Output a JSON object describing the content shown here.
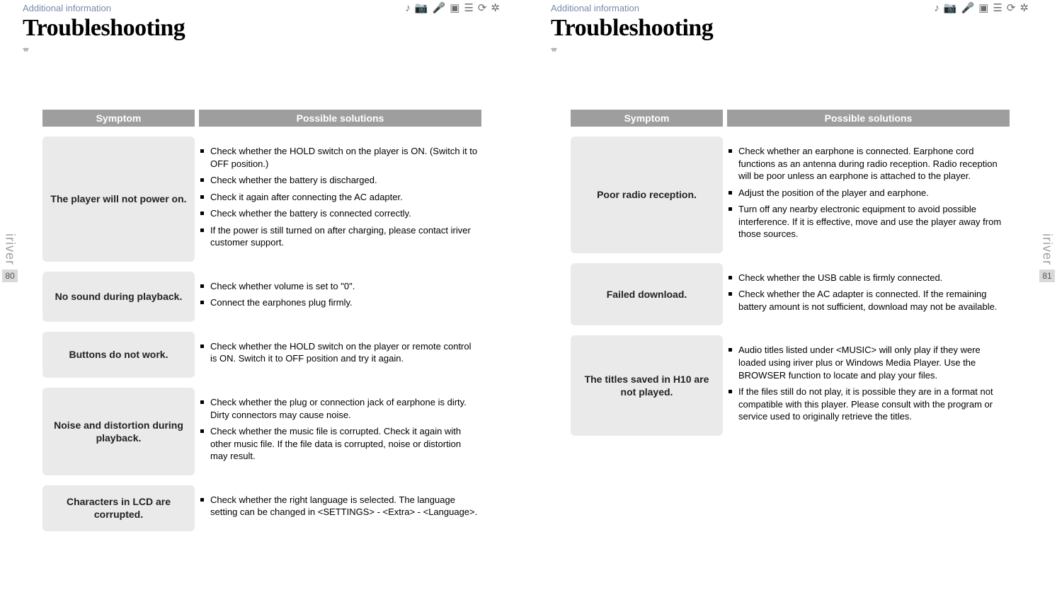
{
  "colors": {
    "header_bg": "#9e9e9e",
    "header_text": "#ffffff",
    "symptom_bg": "#eaeaea",
    "additional_text": "#7b8aa5",
    "brand_text": "#9e9e9e",
    "pgnum_bg": "#d9d9d9"
  },
  "icons": [
    "♪",
    "📷",
    "🎤",
    "▣",
    "☰",
    "⟳",
    "✲"
  ],
  "brand": "iriver",
  "leftPage": {
    "additional": "Additional information",
    "title": "Troubleshooting",
    "pageNumber": "80",
    "headers": {
      "symptom": "Symptom",
      "solutions": "Possible solutions"
    },
    "rows": [
      {
        "symptom": "The player will not power on.",
        "solutions": [
          "Check whether the HOLD switch on the player is ON. (Switch it to OFF position.)",
          "Check whether the battery is discharged.",
          "Check it again after connecting the AC adapter.",
          "Check whether the battery is connected correctly.",
          "If the power is still turned on after charging, please contact iriver customer support."
        ]
      },
      {
        "symptom": "No sound during playback.",
        "solutions": [
          "Check whether volume is set to \"0\".",
          "Connect the earphones plug firmly."
        ]
      },
      {
        "symptom": "Buttons do not work.",
        "solutions": [
          "Check whether the HOLD switch on the player or remote control is ON. Switch it to OFF position and try it again."
        ]
      },
      {
        "symptom": "Noise and distortion during playback.",
        "solutions": [
          "Check whether the plug or connection jack of earphone is dirty. Dirty connectors may cause noise.",
          "Check whether the music file is corrupted. Check it again with other music file. If the file data is corrupted, noise or distortion may result."
        ]
      },
      {
        "symptom": "Characters in LCD are corrupted.",
        "solutions": [
          "Check whether the right language is selected. The language setting can be changed in <SETTINGS> - <Extra> - <Language>."
        ]
      }
    ]
  },
  "rightPage": {
    "additional": "Additional information",
    "title": "Troubleshooting",
    "pageNumber": "81",
    "headers": {
      "symptom": "Symptom",
      "solutions": "Possible solutions"
    },
    "rows": [
      {
        "symptom": "Poor radio reception.",
        "solutions": [
          "Check whether an earphone is connected. Earphone cord functions as an antenna during radio reception. Radio reception will be poor unless an earphone is attached to the player.",
          "Adjust the position of the player and earphone.",
          "Turn off any nearby electronic equipment to avoid possible interference. If it is effective, move and use the player away from those sources."
        ]
      },
      {
        "symptom": "Failed download.",
        "solutions": [
          "Check whether the USB cable is firmly connected.",
          "Check whether the AC adapter is connected. If the remaining battery amount is not sufficient, download may not be available."
        ]
      },
      {
        "symptom": "The titles saved in H10 are not played.",
        "solutions": [
          "Audio titles listed under <MUSIC> will only play if they were loaded using iriver plus or Windows Media Player. Use the BROWSER function to locate and play your files.",
          "If the files still do not play, it is possible they are in a format not compatible with this player. Please consult with the program or service used to originally retrieve the titles."
        ]
      }
    ]
  }
}
